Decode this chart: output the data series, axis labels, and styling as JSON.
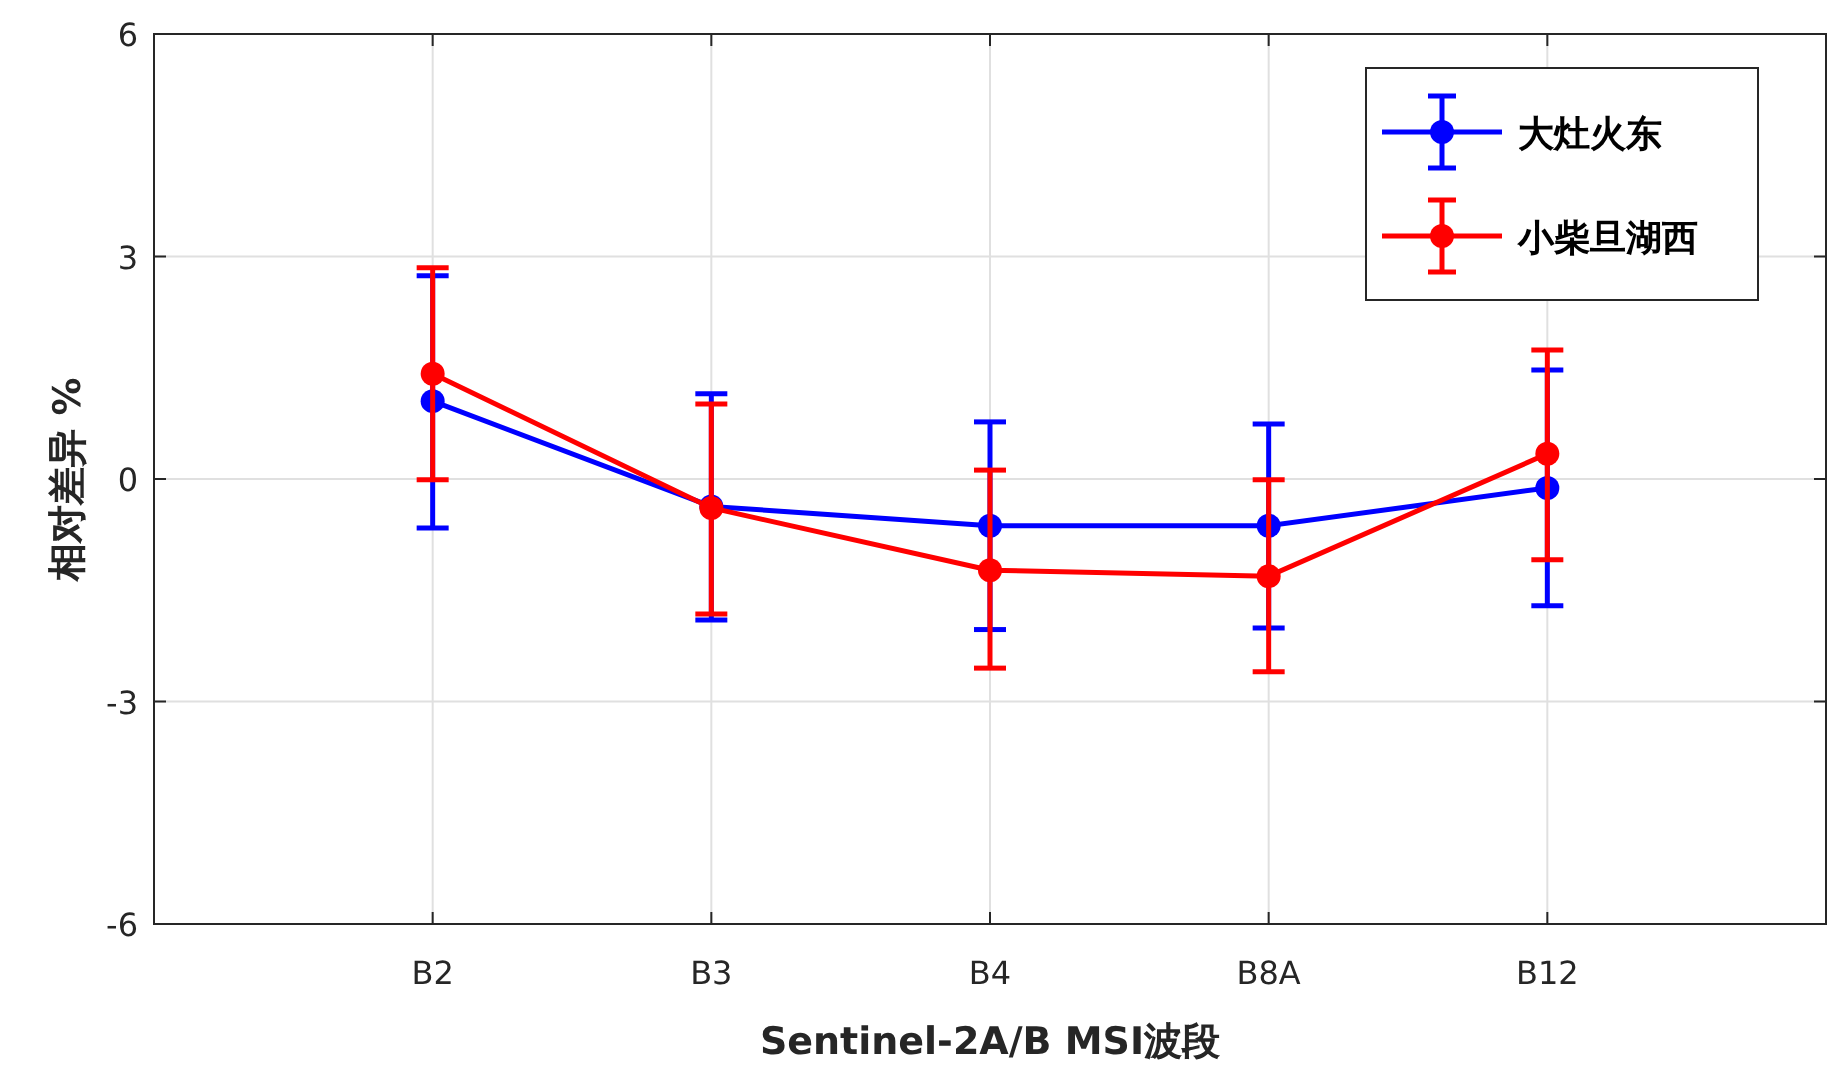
{
  "chart_data": {
    "type": "line",
    "xlabel": "Sentinel-2A/B MSI波段",
    "ylabel": "相对差异 %",
    "categories": [
      "B2",
      "B3",
      "B4",
      "B8A",
      "B12"
    ],
    "ylim": [
      -6,
      6
    ],
    "yticks": [
      -6,
      -3,
      0,
      3,
      6
    ],
    "grid": true,
    "legend": "top right",
    "marker": "circle",
    "series": [
      {
        "name": "大灶火东",
        "color": "#0000ff",
        "values": [
          1.05,
          -0.37,
          -0.63,
          -0.63,
          -0.12
        ],
        "errors": [
          [
            -0.66,
            2.74
          ],
          [
            -1.9,
            1.15
          ],
          [
            -2.03,
            0.77
          ],
          [
            -2.01,
            0.74
          ],
          [
            -1.71,
            1.47
          ]
        ]
      },
      {
        "name": "小柴旦湖西",
        "color": "#ff0000",
        "values": [
          1.42,
          -0.39,
          -1.23,
          -1.31,
          0.34
        ],
        "errors": [
          [
            -0.01,
            2.85
          ],
          [
            -1.82,
            1.01
          ],
          [
            -2.55,
            0.12
          ],
          [
            -2.6,
            -0.01
          ],
          [
            -1.09,
            1.74
          ]
        ]
      }
    ]
  }
}
